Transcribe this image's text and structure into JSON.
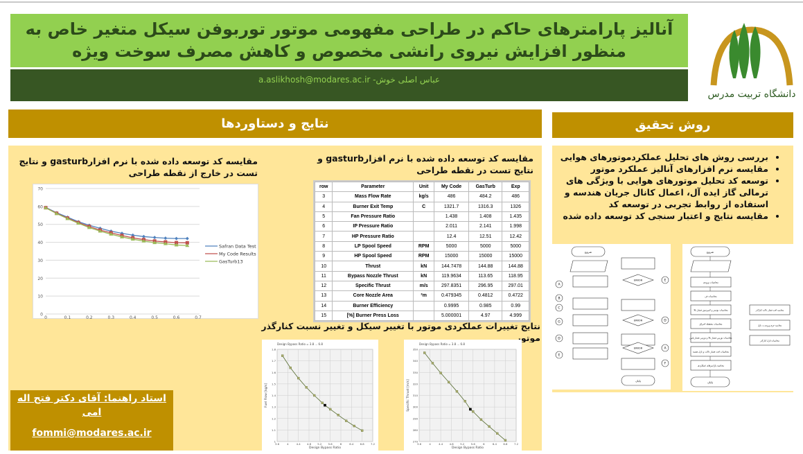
{
  "header": {
    "title": "آنالیز پارامترهای حاکم در طراحی مفهومی موتور توربوفن سیکل متغیر خاص به منظور افزایش نیروی رانشی مخصوص و کاهش مصرف سوخت ویژه",
    "author": "عباس اصلی خوش- a.aslikhosh@modares.ac.ir",
    "logo_text": "دانشگاه تربیت مدرس"
  },
  "colors": {
    "title_bg": "#92d050",
    "band_bg": "#375623",
    "section_bg": "#bf9000",
    "panel_bg": "#ffe699"
  },
  "results": {
    "heading": "نتایج و دستاوردها",
    "caption_table": "مقایسه کد توسعه داده شده با نرم افزارgasturb و نتایج تست در نقطه طراحی",
    "caption_chart": "مقایسه کد توسعه داده شده با نرم افزارgasturb و نتایج تست در خارج از نقطه طراحی",
    "caption_cycle": "نتایج تغییرات عملکردی موتور با تغییر سیکل و تغییر نسبت کنارگذر موتور"
  },
  "method": {
    "heading": "روش تحقیق",
    "items": [
      "بررسی روش های تحلیل عملکردموتورهای هوایی",
      "مقایسه نرم افزارهای آنالیز عملکرد موتور",
      "توسعه کد تحلیل موتورهای هوایی با ویژگی های ترمالی گاز ایده آل، اعمال کانال جریان هندسه و استفاده از روابط تجربی در توسعه کد",
      "مقایسه نتایج و اعتبار سنجی کد توسعه داده شده"
    ]
  },
  "advisor": {
    "name": "استاد راهنما: آقای دکتر فتح اله امی",
    "email": "fommi@modares.ac.ir"
  },
  "table": {
    "headers": [
      "row",
      "Parameter",
      "Unit",
      "My Code",
      "GasTurb",
      "Exp"
    ],
    "rows": [
      [
        "3",
        "Mass Flow Rate",
        "kg/s",
        "486",
        "484.2",
        "486"
      ],
      [
        "4",
        "Burner Exit Temp",
        "C",
        "1321.7",
        "1316.3",
        "1326"
      ],
      [
        "5",
        "Fan Pressure Ratio",
        "",
        "1.438",
        "1.408",
        "1.435"
      ],
      [
        "6",
        "IP Pressure Ratio",
        "",
        "2.011",
        "2.141",
        "1.998"
      ],
      [
        "7",
        "HP Pressure Ratio",
        "",
        "12.4",
        "12.51",
        "12.42"
      ],
      [
        "8",
        "LP Spool Speed",
        "RPM",
        "5000",
        "5000",
        "5000"
      ],
      [
        "9",
        "HP Spool Speed",
        "RPM",
        "15000",
        "15000",
        "15000"
      ],
      [
        "10",
        "Thrust",
        "kN",
        "144.7478",
        "144.88",
        "144.88"
      ],
      [
        "11",
        "Bypass Nozzle Thrust",
        "kN",
        "119.9634",
        "113.65",
        "118.95"
      ],
      [
        "12",
        "Specific Thrust",
        "m/s",
        "297.8351",
        "296.95",
        "297.01"
      ],
      [
        "13",
        "Core Nozzle Area",
        "²m",
        "0.479345",
        "0.4812",
        "0.4722"
      ],
      [
        "14",
        "Burner Efficiency",
        "",
        "0.9995",
        "0.985",
        "0.99"
      ],
      [
        "15",
        "[%] Burner Press Loss",
        "",
        "5.000001",
        "4.97",
        "4.999"
      ]
    ]
  },
  "flowchart_left": {
    "start": "شروع",
    "end": "پایان",
    "error": "ERROR",
    "connectors_left": [
      "A",
      "B",
      "C",
      "G",
      "D",
      "E"
    ],
    "connectors_right": [
      "E",
      "D",
      "A",
      "F"
    ]
  },
  "flowchart_right": {
    "start": "شروع",
    "end": "پایان",
    "boxes": [
      "محاسبات ورودی",
      "محاسبات فن",
      "محاسبات بوستر و کمپرسور فشار بالا",
      "محاسبات محفظه احتراق",
      "محاسبات توربین فشار بالا و توربین فشار پایین",
      "محاسبات افت فشار داکت و نازل هسته",
      "محاسبه پارامترهای عملکردی"
    ],
    "side_boxes": [
      "محاسبه افت فشار داکت کنارگذر",
      "محاسبه جرم ورودی به نازل",
      "محاسبات نازل کنارگذر"
    ]
  },
  "chart_data": [
    {
      "type": "line",
      "xlim": [
        0,
        0.7
      ],
      "ylim": [
        0,
        70
      ],
      "xticks": [
        0,
        0.1,
        0.2,
        0.3,
        0.4,
        0.5,
        0.6,
        0.7
      ],
      "yticks": [
        0,
        10,
        20,
        30,
        40,
        50,
        60,
        70
      ],
      "grid": "horizontal",
      "legend": "right",
      "x": [
        0,
        0.05,
        0.1,
        0.15,
        0.2,
        0.25,
        0.3,
        0.35,
        0.4,
        0.45,
        0.5,
        0.55,
        0.6,
        0.65
      ],
      "series": [
        {
          "name": "Safran Data Test",
          "color": "#4f81bd",
          "marker": "diamond",
          "values": [
            59.5,
            56.5,
            54,
            51.5,
            49.5,
            47.8,
            46.2,
            45,
            44,
            43.2,
            42.7,
            42.3,
            42.1,
            42.1
          ]
        },
        {
          "name": "My Code Results",
          "color": "#c0504d",
          "marker": "square",
          "values": [
            59.3,
            56.2,
            53.5,
            51,
            48.8,
            46.8,
            45.3,
            43.8,
            42.5,
            41.5,
            40.7,
            40.2,
            39.8,
            39.7
          ]
        },
        {
          "name": "GasTurb13",
          "color": "#9bbb59",
          "marker": "triangle",
          "values": [
            59.2,
            56,
            53.2,
            50.6,
            48.2,
            46.2,
            44.5,
            43,
            41.7,
            40.7,
            39.8,
            39.2,
            38.5,
            38.2
          ]
        }
      ]
    },
    {
      "type": "line",
      "title": "Design Bypass Ratio = 3.8 ... 6.8",
      "xlabel": "Design Bypass Ratio",
      "ylabel": "Fuel Flow [kg/s]",
      "xlim": [
        3.6,
        7.2
      ],
      "ylim": [
        1,
        1.8
      ],
      "xticks": [
        3.6,
        4,
        4.4,
        4.8,
        5.2,
        5.6,
        6,
        6.4,
        6.8,
        7.2
      ],
      "yticks": [
        1,
        1.1,
        1.2,
        1.3,
        1.4,
        1.5,
        1.6,
        1.7,
        1.8
      ],
      "grid": "both",
      "x": [
        3.8,
        4.1,
        4.4,
        4.7,
        5,
        5.3,
        5.4,
        5.6,
        5.9,
        6.2,
        6.5,
        6.8
      ],
      "values": [
        1.745,
        1.64,
        1.55,
        1.47,
        1.4,
        1.335,
        1.315,
        1.28,
        1.23,
        1.18,
        1.135,
        1.095
      ],
      "highlight": {
        "x": 5.4,
        "y": 1.315
      }
    },
    {
      "type": "line",
      "title": "Design Bypass Ratio = 3.8 ... 6.8",
      "xlabel": "Design Bypass Ratio",
      "ylabel": "Specific Thrust [m/s]",
      "xlim": [
        3.6,
        7.2
      ],
      "ylim": [
        270,
        350
      ],
      "xticks": [
        3.6,
        4,
        4.4,
        4.8,
        5.2,
        5.6,
        6,
        6.4,
        6.8,
        7.2
      ],
      "yticks": [
        270,
        280,
        290,
        300,
        310,
        320,
        330,
        340,
        350
      ],
      "grid": "both",
      "x": [
        3.8,
        4.1,
        4.4,
        4.7,
        5,
        5.3,
        5.5,
        5.6,
        5.9,
        6.2,
        6.5,
        6.8
      ],
      "values": [
        347,
        338,
        329.5,
        321.5,
        313.5,
        305,
        298,
        296,
        289,
        283,
        277,
        271
      ],
      "highlight": {
        "x": 5.5,
        "y": 298
      }
    }
  ]
}
